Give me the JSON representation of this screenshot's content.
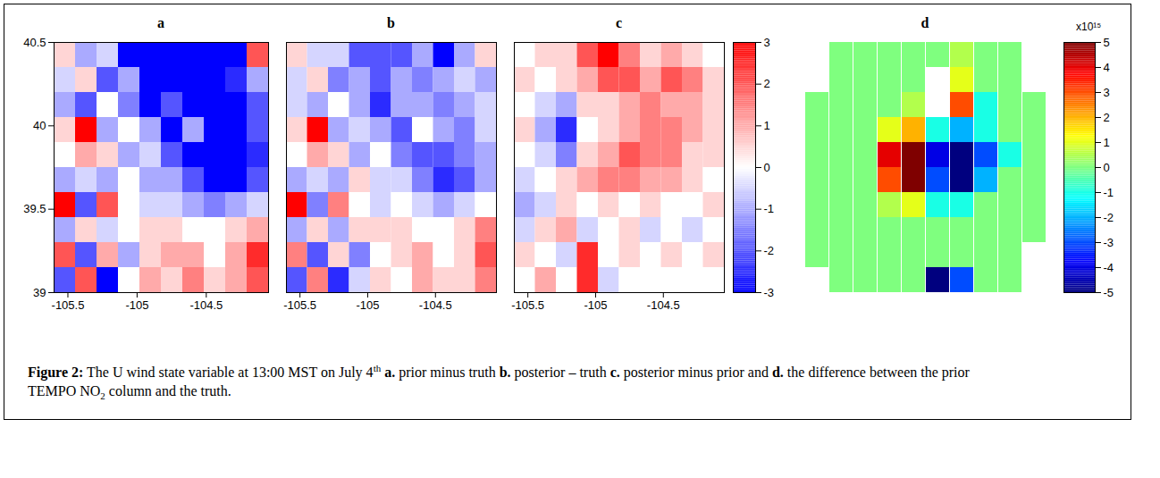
{
  "chart_data": [
    {
      "type": "heatmap",
      "title": "a",
      "color": "bwr",
      "x_edges": [
        -105.6,
        -105.445,
        -105.29,
        -105.135,
        -104.98,
        -104.825,
        -104.67,
        -104.515,
        -104.36,
        -104.205,
        -104.05
      ],
      "y_edges": [
        40.5,
        40.35,
        40.2,
        40.05,
        39.9,
        39.75,
        39.6,
        39.45,
        39.3,
        39.15,
        39.0
      ],
      "cells": [
        [
          0.5,
          -1,
          -0.5,
          -3,
          -3,
          -3,
          -3,
          -3,
          -3,
          2
        ],
        [
          -0.5,
          0.5,
          -2,
          -1,
          -3,
          -3,
          -3,
          -3,
          -2.5,
          -1
        ],
        [
          -1,
          -2,
          0,
          -1.5,
          -3,
          -2,
          -3,
          -3,
          -3,
          -2
        ],
        [
          0.5,
          3,
          -1,
          0,
          -1,
          -3,
          -1,
          -3,
          -3,
          -2
        ],
        [
          0,
          1,
          0.5,
          -1,
          -0.5,
          -2,
          -3,
          -3,
          -3,
          -2.5
        ],
        [
          -1,
          -0.5,
          -1,
          0,
          -1,
          -1,
          -2,
          -3,
          -3,
          -2
        ],
        [
          3,
          -2,
          2,
          0,
          -0.5,
          -0.5,
          -1,
          -1.5,
          -1,
          -0.5
        ],
        [
          -1,
          0.5,
          -0.5,
          0,
          0.5,
          0.5,
          0,
          0,
          0.5,
          1
        ],
        [
          2,
          -2,
          1,
          -1,
          0.5,
          1,
          1,
          0,
          1,
          2.5
        ],
        [
          -2,
          2,
          -3,
          0,
          1,
          0.5,
          1.5,
          0.5,
          1,
          2
        ]
      ],
      "xlim": [
        -105.6,
        -104.05
      ],
      "ylim": [
        39,
        40.5
      ],
      "xticks": [
        -105.5,
        -105,
        -104.5
      ],
      "yticks": [
        39,
        39.5,
        40,
        40.5
      ],
      "colorbar_lim": [
        -3,
        3
      ]
    },
    {
      "type": "heatmap",
      "title": "b",
      "color": "bwr",
      "tick_labels": "x",
      "x_edges": [
        -105.6,
        -105.445,
        -105.29,
        -105.135,
        -104.98,
        -104.825,
        -104.67,
        -104.515,
        -104.36,
        -104.205,
        -104.05
      ],
      "y_edges": [
        40.5,
        40.35,
        40.2,
        40.05,
        39.9,
        39.75,
        39.6,
        39.45,
        39.3,
        39.15,
        39.0
      ],
      "cells": [
        [
          0.5,
          -0.5,
          -0.5,
          -2,
          -2,
          -2,
          -1,
          -3,
          -1,
          0.5
        ],
        [
          -0.5,
          0.5,
          -1.5,
          -1,
          -2,
          -1,
          -1.5,
          -1,
          -0.5,
          -1
        ],
        [
          -0.5,
          -1,
          0,
          -1,
          -2.5,
          -1,
          -1,
          -1.5,
          -1,
          -0.5
        ],
        [
          0.5,
          3,
          -1,
          -0.5,
          -1,
          -2,
          0,
          -1,
          -1.5,
          -0.5
        ],
        [
          0,
          1,
          0.5,
          -1,
          0,
          -1.5,
          -2,
          -2,
          -1.5,
          -1
        ],
        [
          -1,
          -0.5,
          -1,
          0.5,
          -0.5,
          -0.5,
          -1.5,
          -2.5,
          -2,
          -1
        ],
        [
          3,
          -1.5,
          1.5,
          0,
          -0.5,
          0,
          -0.5,
          -1,
          -0.5,
          0
        ],
        [
          -1,
          0.5,
          -1,
          0.5,
          0.5,
          0.5,
          0,
          0,
          0.5,
          1.5
        ],
        [
          1.5,
          -2,
          0.5,
          -1.5,
          0,
          0.5,
          1,
          0,
          0.5,
          2
        ],
        [
          -2,
          1.5,
          -2.5,
          -0.5,
          0.5,
          0,
          1,
          0.5,
          0.5,
          1.5
        ]
      ],
      "xlim": [
        -105.6,
        -104.05
      ],
      "ylim": [
        39,
        40.5
      ],
      "xticks": [
        -105.5,
        -105,
        -104.5
      ],
      "colorbar_lim": [
        -3,
        3
      ]
    },
    {
      "type": "heatmap",
      "title": "c",
      "color": "bwr",
      "tick_labels": "x",
      "x_edges": [
        -105.6,
        -105.445,
        -105.29,
        -105.135,
        -104.98,
        -104.825,
        -104.67,
        -104.515,
        -104.36,
        -104.205,
        -104.05
      ],
      "y_edges": [
        40.5,
        40.35,
        40.2,
        40.05,
        39.9,
        39.75,
        39.6,
        39.45,
        39.3,
        39.15,
        39.0
      ],
      "cells": [
        [
          0,
          0.5,
          0.5,
          2,
          3,
          1.5,
          0.5,
          1,
          0.5,
          0
        ],
        [
          0.5,
          0,
          0.5,
          1,
          2,
          2,
          1,
          2,
          1.5,
          0.5
        ],
        [
          0,
          -0.5,
          -1,
          0.5,
          0.5,
          1,
          1.5,
          1,
          1,
          0.5
        ],
        [
          0.5,
          -1,
          -2.5,
          0,
          0.5,
          1,
          1.5,
          1.5,
          1,
          0.5
        ],
        [
          0,
          -0.5,
          -1.5,
          0.5,
          1,
          2,
          1.5,
          1.5,
          0.5,
          0.5
        ],
        [
          -0.5,
          0,
          0.5,
          1,
          1.5,
          1.5,
          1,
          1,
          0.5,
          0
        ],
        [
          -1,
          -0.5,
          0.5,
          0,
          0.5,
          0,
          0.5,
          0,
          0,
          0.5
        ],
        [
          -0.5,
          0.5,
          1,
          -0.5,
          0,
          0.5,
          -0.5,
          0,
          -0.5,
          0
        ],
        [
          0.5,
          0,
          -0.5,
          2.5,
          0,
          0.5,
          0,
          0.5,
          0,
          0.5
        ],
        [
          0,
          1,
          0,
          2.5,
          -0.5,
          0,
          0,
          0,
          0,
          0
        ]
      ],
      "xlim": [
        -105.6,
        -104.05
      ],
      "ylim": [
        39,
        40.5
      ],
      "xticks": [
        -105.5,
        -105,
        -104.5
      ],
      "colorbar_lim": [
        -3,
        3
      ],
      "colorbar_ticks": [
        3,
        2,
        1,
        0,
        -1,
        -2,
        -3
      ]
    },
    {
      "type": "heatmap",
      "title": "d",
      "color": "jet",
      "tick_labels": false,
      "x_edges": [
        -105.6,
        -105.445,
        -105.29,
        -105.135,
        -104.98,
        -104.825,
        -104.67,
        -104.515,
        -104.36,
        -104.205,
        -104.05
      ],
      "y_edges": [
        40.5,
        40.35,
        40.2,
        40.05,
        39.9,
        39.75,
        39.6,
        39.45,
        39.3,
        39.15,
        39.0
      ],
      "cells": [
        [
          null,
          0,
          0,
          0,
          0,
          0,
          0.5,
          0,
          0,
          null
        ],
        [
          null,
          0,
          0,
          0,
          0,
          null,
          1,
          0,
          0,
          null
        ],
        [
          0,
          0,
          0,
          0,
          0.5,
          null,
          3,
          -1,
          0,
          0
        ],
        [
          0,
          0,
          0,
          1,
          2,
          -1,
          -2,
          -1,
          0,
          0
        ],
        [
          0,
          0,
          0,
          4,
          5,
          -4,
          -5,
          -3,
          -1,
          0
        ],
        [
          0,
          0,
          0,
          3,
          5,
          -3,
          -5,
          -2,
          0,
          0
        ],
        [
          0,
          0,
          0,
          0.5,
          1,
          -1,
          -1,
          0,
          0,
          0
        ],
        [
          0,
          0,
          0,
          0,
          0,
          0,
          0,
          0,
          0,
          0
        ],
        [
          0,
          0,
          0,
          0,
          0,
          0,
          0,
          0,
          0,
          null
        ],
        [
          null,
          0,
          0,
          0,
          0,
          -5,
          -3,
          0,
          0,
          null
        ]
      ],
      "xlim": [
        -105.6,
        -104.05
      ],
      "ylim": [
        39,
        40.5
      ],
      "colorbar_lim": [
        -5,
        5
      ],
      "colorbar_ticks": [
        5,
        4,
        3,
        2,
        1,
        0,
        -1,
        -2,
        -3,
        -4,
        -5
      ],
      "colorbar_label": "x10¹⁵"
    }
  ],
  "caption": [
    {
      "text": "Figure 2:",
      "style": "bold"
    },
    {
      "text": " The U wind state variable at 13:00 MST on July 4"
    },
    {
      "text": "th",
      "style": "sup"
    },
    {
      "text": " a.",
      "style": "bold"
    },
    {
      "text": " prior minus truth  "
    },
    {
      "text": "b.",
      "style": "bold"
    },
    {
      "text": " posterior – truth "
    },
    {
      "text": "c.",
      "style": "bold"
    },
    {
      "text": " posterior minus prior and "
    },
    {
      "text": "d.",
      "style": "bold"
    },
    {
      "text": " the difference between the prior TEMPO NO"
    },
    {
      "text": "2",
      "style": "sub"
    },
    {
      "text": " column and the truth."
    }
  ]
}
